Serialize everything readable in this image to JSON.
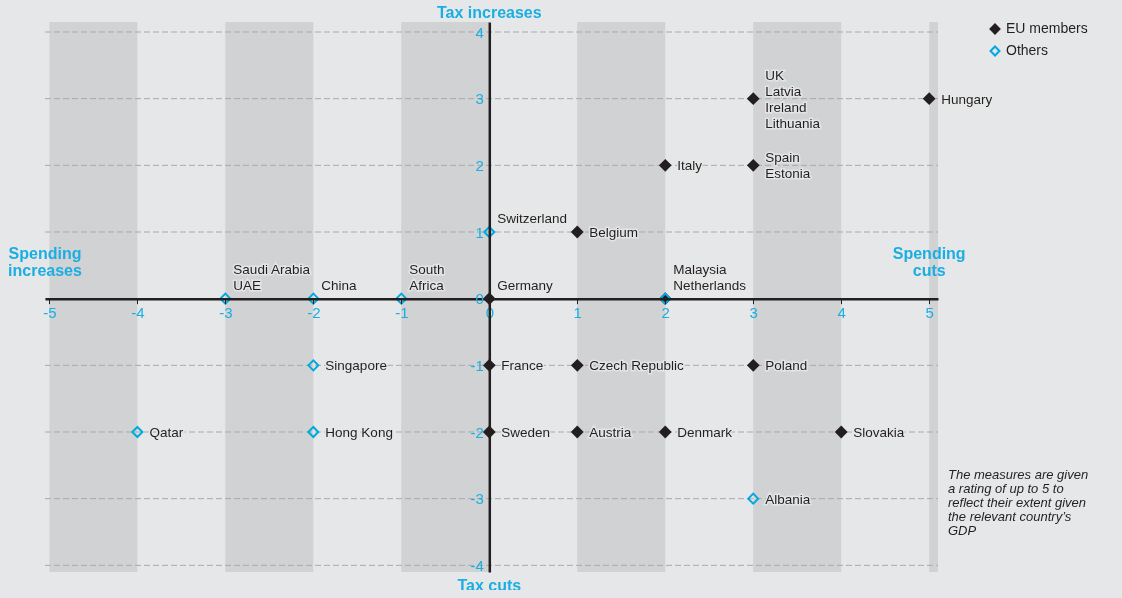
{
  "chart_data": {
    "type": "scatter",
    "series": [
      {
        "name": "EU members",
        "color": "#231f20",
        "x": [
          5,
          3,
          2,
          3,
          1,
          0,
          2,
          0,
          1,
          3,
          0,
          1,
          2,
          4
        ],
        "values": [
          3,
          3,
          2,
          2,
          1,
          0,
          0,
          -1,
          -1,
          -1,
          -2,
          -2,
          -2,
          -2
        ]
      },
      {
        "name": "Others",
        "color": "#00a9e0",
        "x": [
          0,
          -3,
          -2,
          -1,
          2,
          -2,
          -4,
          -2,
          3
        ],
        "values": [
          1,
          0,
          0,
          0,
          0,
          -1,
          -2,
          -2,
          -3
        ]
      }
    ],
    "xlim": [
      -5.05,
      5.1
    ],
    "ylim": [
      -4.1,
      4.15
    ],
    "xticks": [
      -5,
      -4,
      -3,
      -2,
      -1,
      0,
      1,
      2,
      3,
      4,
      5
    ],
    "yticks": [
      -4,
      -3,
      -2,
      -1,
      0,
      1,
      2,
      3,
      4
    ],
    "bands": [
      {
        "axis": "x",
        "from": -5,
        "to": -4,
        "color": "#d1d2d4"
      },
      {
        "axis": "x",
        "from": -3,
        "to": -2,
        "color": "#d1d2d4"
      },
      {
        "axis": "x",
        "from": -1,
        "to": 0,
        "color": "#d1d2d4"
      },
      {
        "axis": "x",
        "from": 1,
        "to": 2,
        "color": "#d1d2d4"
      },
      {
        "axis": "x",
        "from": 3,
        "to": 4,
        "color": "#d1d2d4"
      },
      {
        "axis": "x",
        "from": 5,
        "to": 5.1,
        "color": "#d1d2d4"
      }
    ],
    "grid": "y",
    "legend": "top right",
    "marker": "diamond",
    "annotations": [
      "Tax increases",
      "Tax cuts",
      "Spending\nincreases",
      "Spending\ncuts",
      "The measures are given\na rating of up to 5 to\nreflect their extent given\nthe relevant country’s\nGDP",
      {
        "text": "Hungary",
        "x": 5,
        "y": 3
      },
      {
        "text": "UK\nLatvia\nIreland\nLithuania",
        "x": 3,
        "y": 3
      },
      {
        "text": "Italy",
        "x": 2,
        "y": 2
      },
      {
        "text": "Spain\nEstonia",
        "x": 3,
        "y": 2
      },
      {
        "text": "Belgium",
        "x": 1,
        "y": 1
      },
      {
        "text": "Switzerland",
        "x": 0,
        "y": 1
      },
      {
        "text": "Germany",
        "x": 0,
        "y": 0
      },
      {
        "text": "Malaysia\nNetherlands",
        "x": 2,
        "y": 0
      },
      {
        "text": "Saudi Arabia\nUAE",
        "x": -3,
        "y": 0
      },
      {
        "text": "China",
        "x": -2,
        "y": 0
      },
      {
        "text": "South\nAfrica",
        "x": -1,
        "y": 0
      },
      {
        "text": "France",
        "x": 0,
        "y": -1
      },
      {
        "text": "Czech Republic",
        "x": 1,
        "y": -1
      },
      {
        "text": "Poland",
        "x": 3,
        "y": -1
      },
      {
        "text": "Singapore",
        "x": -2,
        "y": -1
      },
      {
        "text": "Sweden",
        "x": 0,
        "y": -2
      },
      {
        "text": "Austria",
        "x": 1,
        "y": -2
      },
      {
        "text": "Denmark",
        "x": 2,
        "y": -2
      },
      {
        "text": "Slovakia",
        "x": 4,
        "y": -2
      },
      {
        "text": "Qatar",
        "x": -4,
        "y": -2
      },
      {
        "text": "Hong Kong",
        "x": -2,
        "y": -2
      },
      {
        "text": "Albania",
        "x": 3,
        "y": -3
      }
    ]
  }
}
